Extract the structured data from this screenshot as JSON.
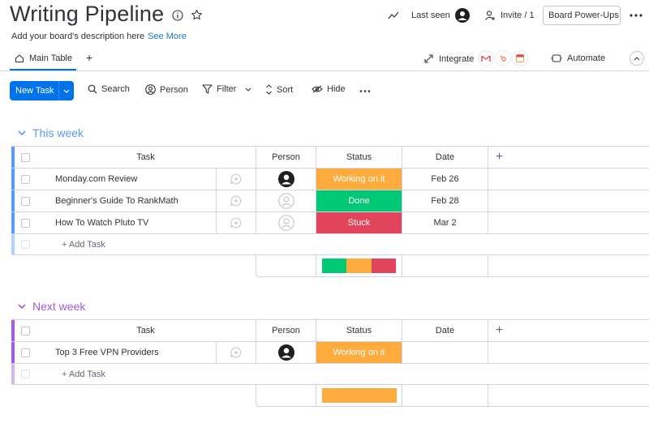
{
  "header": {
    "title": "Writing Pipeline",
    "description": "Add your board's description here",
    "see_more": "See More",
    "last_seen": "Last seen",
    "invite": "Invite / 1",
    "power_ups": "Board Power-Ups"
  },
  "tabs": {
    "main_table": "Main Table",
    "add": "+",
    "integrate": "Integrate",
    "automate": "Automate"
  },
  "toolbar": {
    "new_task": "New Task",
    "search": "Search",
    "person": "Person",
    "filter": "Filter",
    "sort": "Sort",
    "hide": "Hide"
  },
  "columns": {
    "task": "Task",
    "person": "Person",
    "status": "Status",
    "date": "Date",
    "add": "+"
  },
  "groups": [
    {
      "title": "This week",
      "color": "#579bfc",
      "add_task": "+ Add Task",
      "rows": [
        {
          "task": "Monday.com Review",
          "person": "filled",
          "status": "Working on it",
          "status_color": "#fdab3d",
          "date": "Feb 26"
        },
        {
          "task": "Beginner's Guide To RankMath",
          "person": "empty",
          "status": "Done",
          "status_color": "#00c875",
          "date": "Feb 28"
        },
        {
          "task": "How To Watch Pluto TV",
          "person": "empty",
          "status": "Stuck",
          "status_color": "#e2445c",
          "date": "Mar 2"
        }
      ],
      "summary": [
        {
          "color": "#00c875",
          "share": 1
        },
        {
          "color": "#fdab3d",
          "share": 1
        },
        {
          "color": "#e2445c",
          "share": 1
        }
      ]
    },
    {
      "title": "Next week",
      "color": "#a25ddc",
      "add_task": "+ Add Task",
      "rows": [
        {
          "task": "Top 3 Free VPN Providers",
          "person": "filled",
          "status": "Working on it",
          "status_color": "#fdab3d",
          "date": ""
        }
      ],
      "summary": [
        {
          "color": "#fdab3d",
          "share": 1
        }
      ]
    }
  ]
}
